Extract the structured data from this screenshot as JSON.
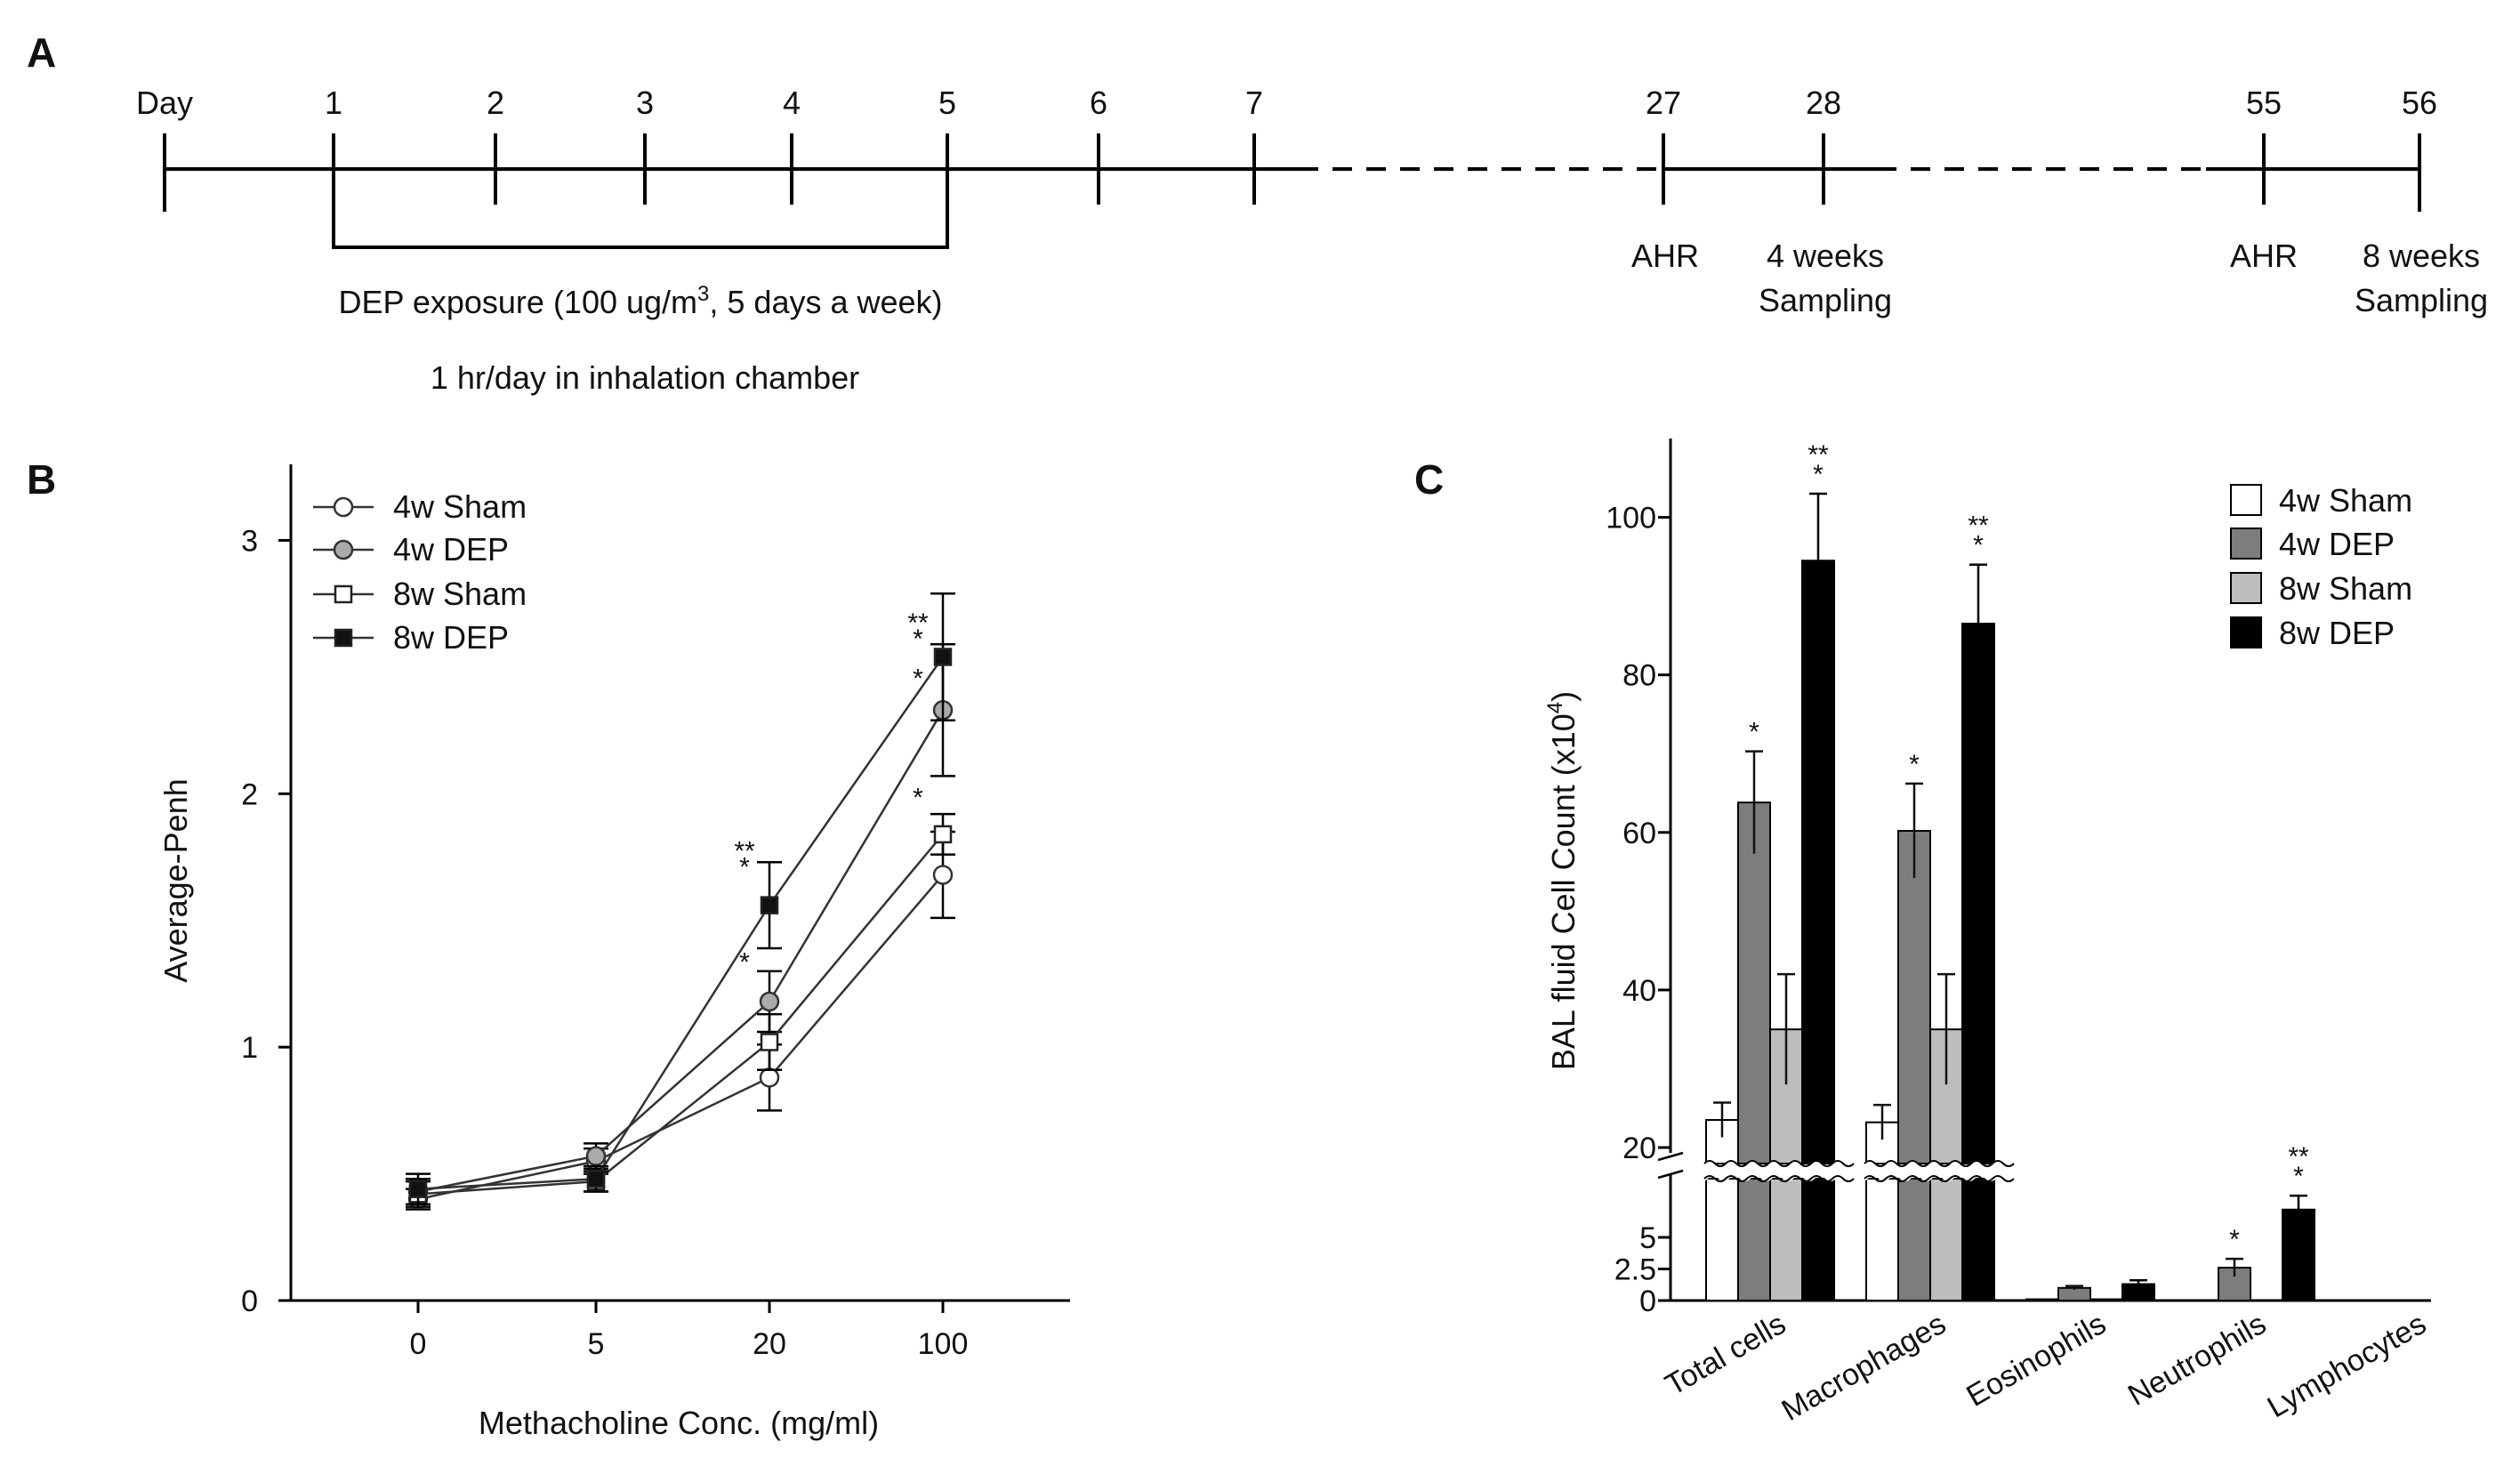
{
  "panels": {
    "a": "A",
    "b": "B",
    "c": "C"
  },
  "timeline": {
    "day_label": "Day",
    "days": [
      "1",
      "2",
      "3",
      "4",
      "5",
      "6",
      "7",
      "27",
      "28",
      "55",
      "56"
    ],
    "exposure_prefix": "DEP  exposure (100 ug/m",
    "exposure_sup": "3",
    "exposure_suffix": ", 5 days a week)",
    "chamber": "1 hr/day in inhalation chamber",
    "ahr_27": "AHR",
    "s4_line1": "4 weeks",
    "s4_line2": "Sampling",
    "ahr_55": "AHR",
    "s8_line1": "8 weeks",
    "s8_line2": "Sampling"
  },
  "chart_data": [
    {
      "type": "line",
      "panel": "B",
      "xlabel": "Methacholine Conc. (mg/ml)",
      "ylabel": "Average-Penh",
      "categories": [
        "0",
        "5",
        "20",
        "100"
      ],
      "ylim": [
        0,
        3.3
      ],
      "yticks": [
        0,
        1,
        2,
        3
      ],
      "legend_position": "top-left",
      "series": [
        {
          "name": "4w Sham",
          "marker": "circle",
          "fill": "#ffffff",
          "values": [
            0.4,
            0.55,
            0.88,
            1.68
          ],
          "err": [
            0.04,
            0.05,
            0.13,
            0.17
          ]
        },
        {
          "name": "4w DEP",
          "marker": "circle",
          "fill": "#aaaaaa",
          "values": [
            0.43,
            0.57,
            1.18,
            2.33
          ],
          "err": [
            0.05,
            0.05,
            0.12,
            0.26
          ]
        },
        {
          "name": "8w Sham",
          "marker": "square",
          "fill": "#ffffff",
          "values": [
            0.42,
            0.47,
            1.02,
            1.84
          ],
          "err": [
            0.05,
            0.04,
            0.11,
            0.08
          ]
        },
        {
          "name": "8w DEP",
          "marker": "square",
          "fill": "#111111",
          "values": [
            0.44,
            0.48,
            1.56,
            2.54
          ],
          "err": [
            0.06,
            0.05,
            0.17,
            0.25
          ]
        }
      ],
      "annotations": [
        {
          "category": "20",
          "y": 1.74,
          "lines": [
            "**",
            "*"
          ]
        },
        {
          "category": "20",
          "y": 1.3,
          "lines": [
            "*"
          ]
        },
        {
          "category": "100",
          "y": 2.64,
          "lines": [
            "**",
            "*"
          ]
        },
        {
          "category": "100",
          "y": 2.42,
          "lines": [
            "*"
          ]
        },
        {
          "category": "100",
          "y": 1.95,
          "lines": [
            "*"
          ]
        }
      ]
    },
    {
      "type": "bar",
      "panel": "C",
      "ylabel_main": "BAL fluid Cell Count (x10",
      "ylabel_sup": "4",
      "ylabel_end": ")",
      "categories": [
        "Total cells",
        "Macrophages",
        "Eosinophils",
        "Neutrophils",
        "Lymphocytes"
      ],
      "broken_axis": true,
      "y_upper_range": [
        20,
        110
      ],
      "y_upper_ticks": [
        20,
        40,
        60,
        80,
        100
      ],
      "y_lower_range": [
        0,
        10
      ],
      "y_lower_ticks": [
        "0",
        "2.5",
        "5"
      ],
      "legend_position": "top-right",
      "series": [
        {
          "name": "4w Sham",
          "color": "#ffffff",
          "values": [
            23.5,
            23.2,
            0.1,
            0.0,
            0.0
          ],
          "err": [
            2.2,
            2.2,
            0.0,
            0.0,
            0.0
          ]
        },
        {
          "name": "4w DEP",
          "color": "#7d7d7d",
          "values": [
            63.8,
            60.2,
            1.0,
            2.6,
            0.0
          ],
          "err": [
            6.5,
            6.0,
            0.15,
            0.7,
            0.0
          ]
        },
        {
          "name": "8w Sham",
          "color": "#bdbdbd",
          "values": [
            35.0,
            35.0,
            0.1,
            0.0,
            0.0
          ],
          "err": [
            7.0,
            7.0,
            0.0,
            0.0,
            0.0
          ]
        },
        {
          "name": "8w DEP",
          "color": "#000000",
          "values": [
            94.5,
            86.5,
            1.3,
            7.2,
            0.0
          ],
          "err": [
            8.5,
            7.5,
            0.3,
            1.1,
            0.0
          ]
        }
      ],
      "annotations": [
        {
          "category": "Total cells",
          "series": 1,
          "lines": [
            "*"
          ]
        },
        {
          "category": "Total cells",
          "series": 3,
          "lines": [
            "**",
            "*"
          ]
        },
        {
          "category": "Macrophages",
          "series": 1,
          "lines": [
            "*"
          ]
        },
        {
          "category": "Macrophages",
          "series": 3,
          "lines": [
            "**",
            "*"
          ]
        },
        {
          "category": "Neutrophils",
          "series": 1,
          "lines": [
            "*"
          ]
        },
        {
          "category": "Neutrophils",
          "series": 3,
          "lines": [
            "**",
            "*"
          ]
        }
      ]
    }
  ]
}
